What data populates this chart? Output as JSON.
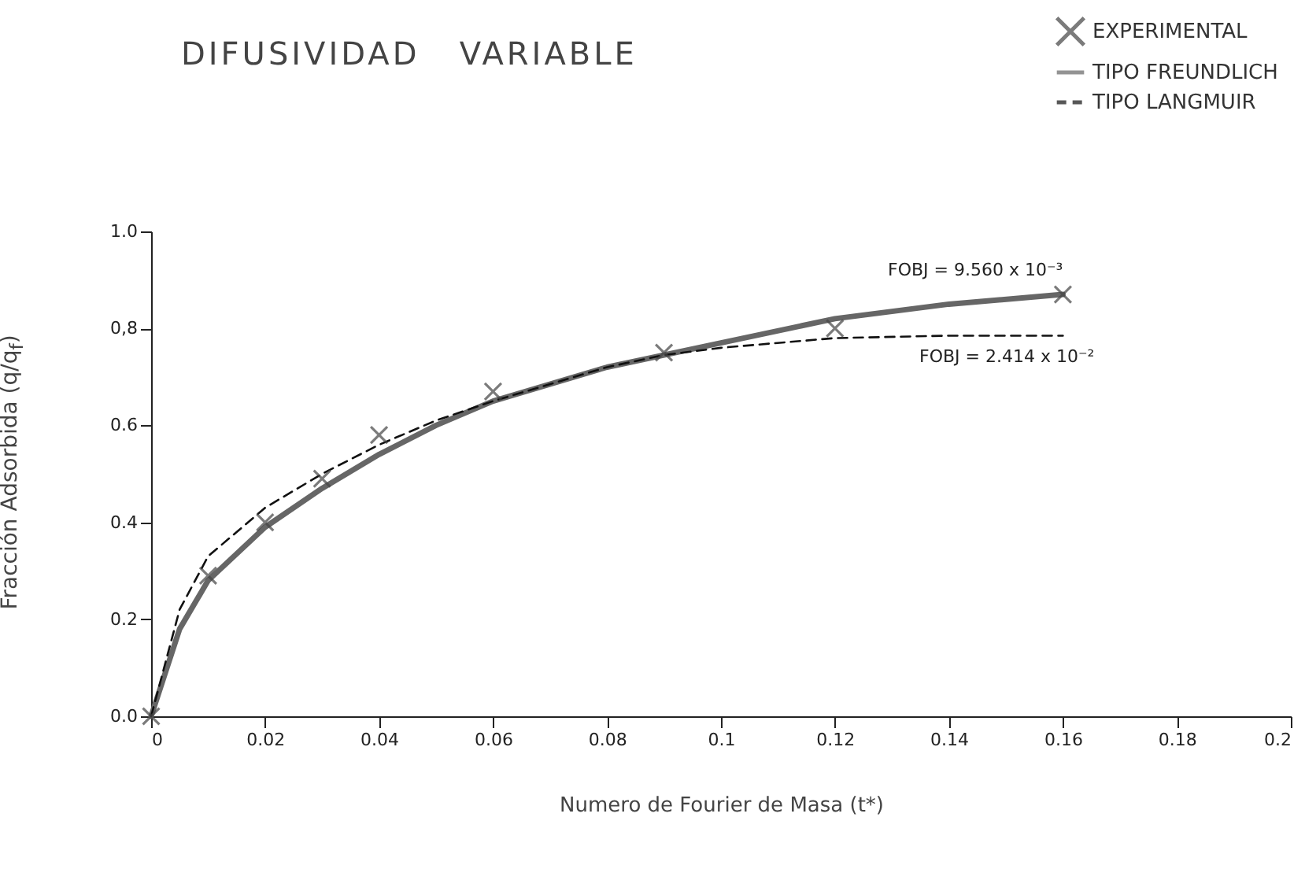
{
  "chart_data": {
    "type": "line",
    "title": "DIFUSIVIDAD   VARIABLE",
    "xlabel": "Numero  de  Fourier  de  Masa  (t*)",
    "ylabel": "Fracción   Adsorbida   (q/q$_{f}$)",
    "xlim": [
      0,
      0.2
    ],
    "xticks": [
      0,
      0.02,
      0.04,
      0.06,
      0.08,
      0.1,
      0.12,
      0.14,
      0.16,
      0.18,
      0.2
    ],
    "ylim": [
      0,
      1
    ],
    "yticks": [
      {
        "value": 0,
        "label": "0.0"
      },
      {
        "value": 0.2,
        "label": "0.2"
      },
      {
        "value": 0.4,
        "label": "0.4"
      },
      {
        "value": 0.6,
        "label": "0.6"
      },
      {
        "value": 0.8,
        "label": "0,8"
      },
      {
        "value": 1,
        "label": "1.0"
      }
    ],
    "grid": false,
    "legend": "top right",
    "series": [
      {
        "name": "EXPERIMENTAL",
        "type": "scatter",
        "marker": "cross",
        "color": "#444444",
        "x": [
          0,
          0.01,
          0.02,
          0.03,
          0.04,
          0.06,
          0.09,
          0.12,
          0.16
        ],
        "values": [
          0,
          0.29,
          0.4,
          0.49,
          0.58,
          0.67,
          0.75,
          0.8,
          0.87
        ]
      },
      {
        "name": "TIPO FREUNDLICH",
        "type": "line",
        "line_style": "solid",
        "color": "#666666",
        "x": [
          0,
          0.005,
          0.01,
          0.02,
          0.03,
          0.04,
          0.05,
          0.06,
          0.08,
          0.1,
          0.12,
          0.14,
          0.16
        ],
        "values": [
          0,
          0.18,
          0.28,
          0.39,
          0.47,
          0.54,
          0.6,
          0.65,
          0.72,
          0.77,
          0.82,
          0.85,
          0.87
        ]
      },
      {
        "name": "TIPO LANGMUIR",
        "type": "line",
        "line_style": "dashed",
        "color": "#111111",
        "x": [
          0,
          0.005,
          0.01,
          0.02,
          0.03,
          0.04,
          0.05,
          0.06,
          0.08,
          0.09,
          0.1,
          0.12,
          0.14,
          0.16
        ],
        "values": [
          0,
          0.22,
          0.33,
          0.43,
          0.5,
          0.56,
          0.61,
          0.65,
          0.72,
          0.745,
          0.76,
          0.78,
          0.785,
          0.785
        ]
      }
    ],
    "annotations": [
      {
        "text": "FOBJ = 9.560 x 10⁻³",
        "x": 0.16,
        "y": 0.87
      },
      {
        "text": "FOBJ = 2.414 x 10⁻²",
        "x": 0.16,
        "y": 0.785
      }
    ]
  }
}
